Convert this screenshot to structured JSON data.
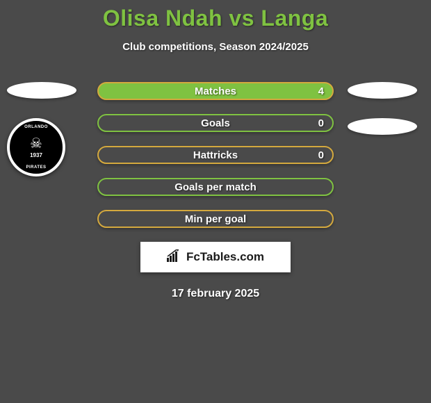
{
  "title": "Olisa Ndah vs Langa",
  "subtitle": "Club competitions, Season 2024/2025",
  "date": "17 february 2025",
  "brand": {
    "name": "FcTables.com"
  },
  "colors": {
    "background": "#4a4a4a",
    "accent_green": "#7fc241",
    "accent_orange": "#d4a93e",
    "text_white": "#ffffff",
    "badge_bg": "#000000"
  },
  "badge": {
    "top_text": "ORLANDO",
    "bottom_text": "PIRATES",
    "year": "1937"
  },
  "stats": [
    {
      "label": "Matches",
      "value": "4",
      "fill_color": "#7fc241",
      "border_color": "#d4a93e",
      "has_value": true
    },
    {
      "label": "Goals",
      "value": "0",
      "fill_color": "#4a4a4a",
      "border_color": "#7fc241",
      "has_value": true
    },
    {
      "label": "Hattricks",
      "value": "0",
      "fill_color": "#4a4a4a",
      "border_color": "#d4a93e",
      "has_value": true
    },
    {
      "label": "Goals per match",
      "value": "",
      "fill_color": "#4a4a4a",
      "border_color": "#7fc241",
      "has_value": false
    },
    {
      "label": "Min per goal",
      "value": "",
      "fill_color": "#4a4a4a",
      "border_color": "#d4a93e",
      "has_value": false
    }
  ],
  "left_placeholders": 1,
  "right_placeholders": 2
}
